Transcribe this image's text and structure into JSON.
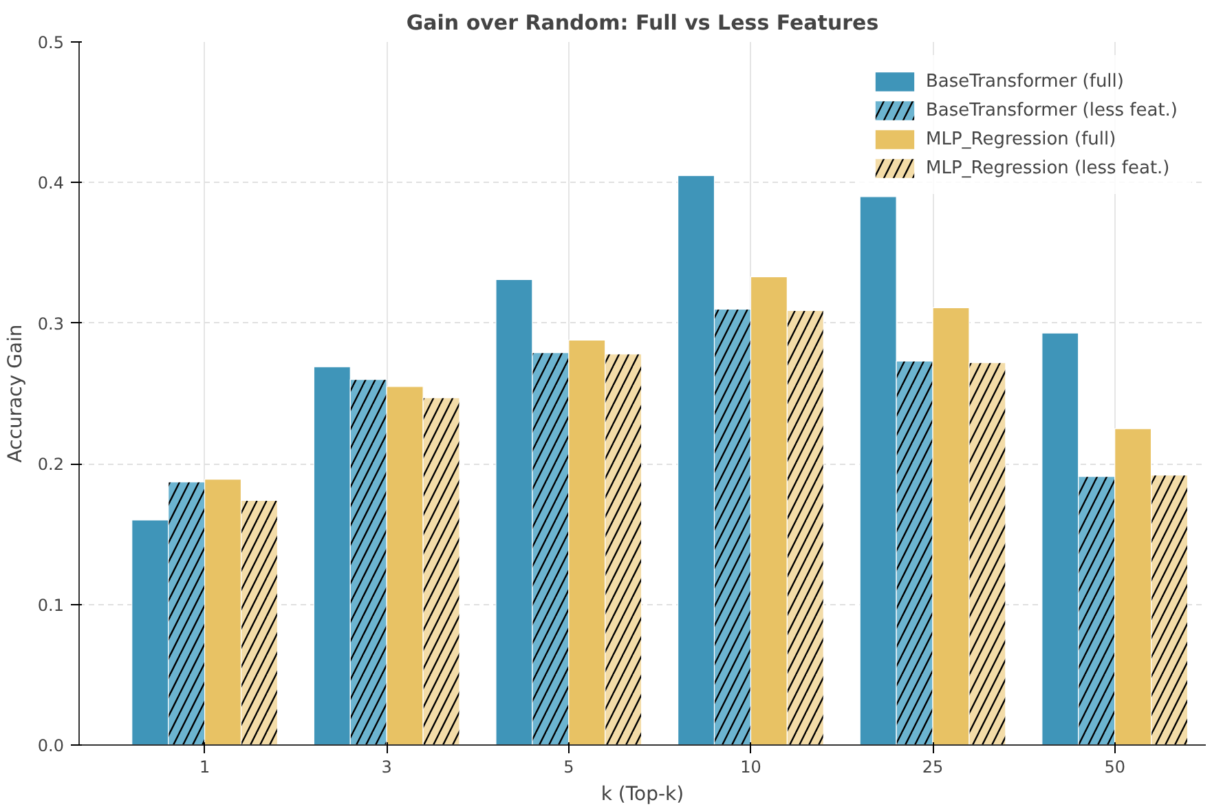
{
  "chart_data": {
    "type": "bar",
    "title": "Gain over Random: Full vs Less Features",
    "xlabel": "k (Top-k)",
    "ylabel": "Accuracy Gain",
    "categories": [
      "1",
      "3",
      "5",
      "10",
      "25",
      "50"
    ],
    "series": [
      {
        "name": "BaseTransformer (full)",
        "color": "#3f95b9",
        "values": [
          0.16,
          0.269,
          0.331,
          0.405,
          0.39,
          0.293
        ]
      },
      {
        "name": "BaseTransformer (less feat.)",
        "color": "#6cb4d0",
        "values": [
          0.187,
          0.26,
          0.279,
          0.31,
          0.273,
          0.191
        ]
      },
      {
        "name": "MLP_Regression (full)",
        "color": "#e8c264",
        "values": [
          0.189,
          0.255,
          0.288,
          0.333,
          0.311,
          0.225
        ]
      },
      {
        "name": "MLP_Regression (less feat.)",
        "color": "#f3dca8",
        "values": [
          0.174,
          0.247,
          0.278,
          0.309,
          0.272,
          0.192
        ]
      }
    ],
    "ylim": [
      0,
      0.5
    ],
    "yticks": [
      {
        "value": 0,
        "label": "0.0"
      },
      0.1,
      0.2,
      0.3,
      0.4,
      {
        "value": 0.5,
        "label": "0.5"
      }
    ],
    "grid": true,
    "legend": "top right"
  }
}
